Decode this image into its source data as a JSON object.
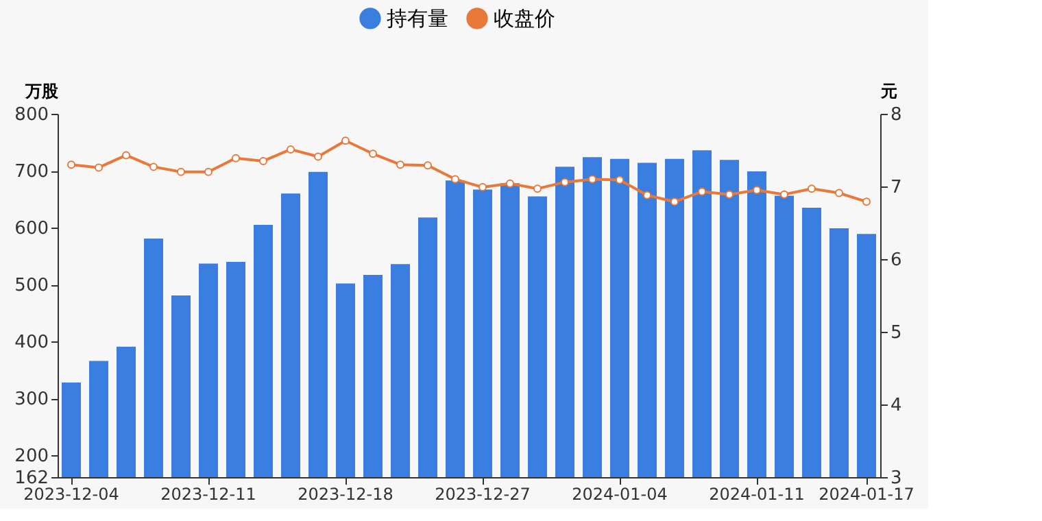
{
  "chart_data": {
    "type": "bar",
    "categories": [
      "2023-12-04",
      null,
      null,
      null,
      null,
      "2023-12-11",
      null,
      null,
      null,
      null,
      "2023-12-18",
      null,
      null,
      null,
      null,
      "2023-12-27",
      null,
      null,
      null,
      null,
      "2024-01-04",
      null,
      null,
      null,
      null,
      "2024-01-11",
      null,
      null,
      null,
      "2024-01-17"
    ],
    "series": [
      {
        "name": "持有量",
        "color": "#3a7fe0",
        "values": [
          328,
          366,
          391,
          581,
          481,
          537,
          540,
          605,
          660,
          698,
          502,
          517,
          536,
          618,
          683,
          667,
          678,
          655,
          707,
          724,
          721,
          714,
          721,
          736,
          719,
          699,
          656,
          635,
          599,
          589
        ]
      },
      {
        "name": "收盘价",
        "type": "line",
        "axis": "y2",
        "color": "#e8793a",
        "marker": "circle",
        "values": [
          7.3,
          7.26,
          7.43,
          7.27,
          7.2,
          7.2,
          7.39,
          7.35,
          7.51,
          7.41,
          7.63,
          7.45,
          7.3,
          7.29,
          7.1,
          6.99,
          7.04,
          6.97,
          7.06,
          7.1,
          7.09,
          6.88,
          6.79,
          6.93,
          6.89,
          6.95,
          6.89,
          6.97,
          6.91,
          6.79
        ]
      }
    ],
    "ylabel": "万股",
    "y2label": "元",
    "ylim": [
      162,
      800
    ],
    "yticks": [
      162,
      200,
      300,
      400,
      500,
      600,
      700,
      800
    ],
    "y2lim": [
      3,
      8
    ],
    "y2ticks": [
      3,
      4,
      5,
      6,
      7,
      8
    ],
    "legend": "top",
    "grid": false
  }
}
